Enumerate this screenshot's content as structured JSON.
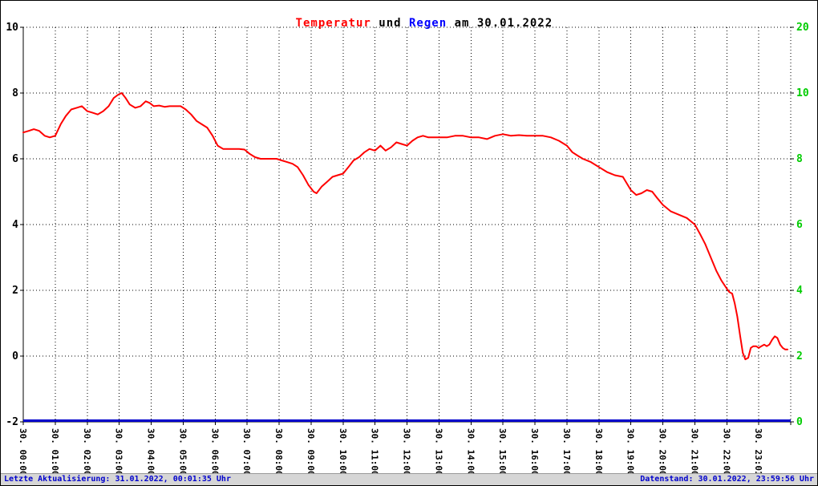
{
  "title": {
    "temperature": "Temperatur",
    "conjunction": " und ",
    "rain": "Regen",
    "date_suffix": " am 30.01.2022"
  },
  "footer": {
    "left": "Letzte Aktualisierung: 31.01.2022, 00:01:35 Uhr",
    "right": "Datenstand: 30.01.2022, 23:59:56 Uhr"
  },
  "colors": {
    "temperature": "#ff0000",
    "rain": "#0000cc",
    "grid": "#000000",
    "left_axis_text": "#000000",
    "right_axis_text": "#00cc00",
    "footer_text": "#0000cc",
    "footer_bg": "#d6d6d6"
  },
  "chart_data": {
    "type": "line",
    "title": "Temperatur und Regen am 30.01.2022",
    "grid": "dotted",
    "legend": "none",
    "x_axis": {
      "range_hours": [
        0,
        24
      ],
      "tick_labels": [
        "30. 00:00",
        "30. 01:00",
        "30. 02:00",
        "30. 03:00",
        "30. 04:00",
        "30. 05:00",
        "30. 06:00",
        "30. 07:00",
        "30. 08:00",
        "30. 09:00",
        "30. 10:00",
        "30. 11:00",
        "30. 12:00",
        "30. 13:00",
        "30. 14:00",
        "30. 15:00",
        "30. 16:00",
        "30. 17:00",
        "30. 18:00",
        "30. 19:00",
        "30. 20:00",
        "30. 21:00",
        "30. 22:00",
        "30. 23:01"
      ]
    },
    "y_left": {
      "label_values": [
        10,
        8,
        6,
        4,
        2,
        0,
        -2
      ],
      "range": [
        -2,
        10
      ],
      "unit": "Temperatur"
    },
    "y_right": {
      "tick_labels": [
        "20",
        "10",
        "8",
        "6",
        "4",
        "2",
        "0"
      ],
      "range": [
        0,
        20
      ],
      "unit": "Regen"
    },
    "series": [
      {
        "name": "Temperatur",
        "color_key": "temperature",
        "axis": "left",
        "points": [
          [
            0,
            6.8
          ],
          [
            0.17,
            6.85
          ],
          [
            0.33,
            6.9
          ],
          [
            0.5,
            6.85
          ],
          [
            0.67,
            6.7
          ],
          [
            0.83,
            6.65
          ],
          [
            1,
            6.7
          ],
          [
            1.17,
            7.05
          ],
          [
            1.33,
            7.3
          ],
          [
            1.5,
            7.5
          ],
          [
            1.67,
            7.55
          ],
          [
            1.83,
            7.6
          ],
          [
            2,
            7.45
          ],
          [
            2.17,
            7.4
          ],
          [
            2.33,
            7.35
          ],
          [
            2.5,
            7.45
          ],
          [
            2.67,
            7.6
          ],
          [
            2.83,
            7.85
          ],
          [
            2.97,
            7.95
          ],
          [
            3.08,
            8.0
          ],
          [
            3.2,
            7.85
          ],
          [
            3.33,
            7.65
          ],
          [
            3.5,
            7.55
          ],
          [
            3.67,
            7.6
          ],
          [
            3.83,
            7.75
          ],
          [
            3.95,
            7.7
          ],
          [
            4.08,
            7.6
          ],
          [
            4.25,
            7.62
          ],
          [
            4.42,
            7.58
          ],
          [
            4.58,
            7.6
          ],
          [
            4.75,
            7.6
          ],
          [
            4.92,
            7.6
          ],
          [
            5.08,
            7.5
          ],
          [
            5.25,
            7.35
          ],
          [
            5.42,
            7.15
          ],
          [
            5.58,
            7.05
          ],
          [
            5.75,
            6.95
          ],
          [
            5.92,
            6.7
          ],
          [
            6.08,
            6.4
          ],
          [
            6.25,
            6.3
          ],
          [
            6.42,
            6.3
          ],
          [
            6.58,
            6.3
          ],
          [
            6.75,
            6.3
          ],
          [
            6.92,
            6.28
          ],
          [
            7.08,
            6.15
          ],
          [
            7.25,
            6.05
          ],
          [
            7.42,
            6.0
          ],
          [
            7.58,
            6.0
          ],
          [
            7.75,
            6.0
          ],
          [
            7.92,
            6.0
          ],
          [
            8.08,
            5.95
          ],
          [
            8.25,
            5.9
          ],
          [
            8.42,
            5.85
          ],
          [
            8.58,
            5.75
          ],
          [
            8.75,
            5.5
          ],
          [
            8.92,
            5.2
          ],
          [
            9.08,
            5.0
          ],
          [
            9.17,
            4.95
          ],
          [
            9.33,
            5.15
          ],
          [
            9.5,
            5.3
          ],
          [
            9.67,
            5.45
          ],
          [
            9.83,
            5.5
          ],
          [
            10,
            5.55
          ],
          [
            10.17,
            5.75
          ],
          [
            10.33,
            5.95
          ],
          [
            10.5,
            6.05
          ],
          [
            10.67,
            6.2
          ],
          [
            10.83,
            6.3
          ],
          [
            11,
            6.25
          ],
          [
            11.17,
            6.4
          ],
          [
            11.33,
            6.25
          ],
          [
            11.5,
            6.35
          ],
          [
            11.67,
            6.5
          ],
          [
            11.83,
            6.45
          ],
          [
            12,
            6.4
          ],
          [
            12.17,
            6.55
          ],
          [
            12.33,
            6.65
          ],
          [
            12.5,
            6.7
          ],
          [
            12.67,
            6.65
          ],
          [
            12.83,
            6.65
          ],
          [
            13,
            6.65
          ],
          [
            13.25,
            6.65
          ],
          [
            13.5,
            6.7
          ],
          [
            13.75,
            6.7
          ],
          [
            14,
            6.65
          ],
          [
            14.25,
            6.65
          ],
          [
            14.5,
            6.6
          ],
          [
            14.75,
            6.7
          ],
          [
            15,
            6.75
          ],
          [
            15.25,
            6.7
          ],
          [
            15.5,
            6.72
          ],
          [
            15.75,
            6.7
          ],
          [
            16,
            6.7
          ],
          [
            16.25,
            6.7
          ],
          [
            16.5,
            6.65
          ],
          [
            16.75,
            6.55
          ],
          [
            17,
            6.4
          ],
          [
            17.17,
            6.2
          ],
          [
            17.33,
            6.1
          ],
          [
            17.5,
            6.0
          ],
          [
            17.75,
            5.9
          ],
          [
            18,
            5.75
          ],
          [
            18.25,
            5.6
          ],
          [
            18.5,
            5.5
          ],
          [
            18.75,
            5.45
          ],
          [
            19,
            5.05
          ],
          [
            19.17,
            4.9
          ],
          [
            19.33,
            4.95
          ],
          [
            19.5,
            5.05
          ],
          [
            19.67,
            5.0
          ],
          [
            19.83,
            4.8
          ],
          [
            20,
            4.6
          ],
          [
            20.25,
            4.4
          ],
          [
            20.5,
            4.3
          ],
          [
            20.75,
            4.2
          ],
          [
            21,
            4.0
          ],
          [
            21.17,
            3.7
          ],
          [
            21.33,
            3.4
          ],
          [
            21.5,
            3.0
          ],
          [
            21.67,
            2.6
          ],
          [
            21.83,
            2.3
          ],
          [
            22,
            2.05
          ],
          [
            22.08,
            1.95
          ],
          [
            22.17,
            1.9
          ],
          [
            22.25,
            1.6
          ],
          [
            22.33,
            1.2
          ],
          [
            22.42,
            0.6
          ],
          [
            22.5,
            0.1
          ],
          [
            22.58,
            -0.1
          ],
          [
            22.67,
            -0.05
          ],
          [
            22.75,
            0.25
          ],
          [
            22.83,
            0.3
          ],
          [
            22.92,
            0.3
          ],
          [
            23,
            0.25
          ],
          [
            23.08,
            0.3
          ],
          [
            23.17,
            0.35
          ],
          [
            23.25,
            0.3
          ],
          [
            23.33,
            0.35
          ],
          [
            23.42,
            0.5
          ],
          [
            23.5,
            0.6
          ],
          [
            23.58,
            0.55
          ],
          [
            23.67,
            0.35
          ],
          [
            23.75,
            0.25
          ],
          [
            23.83,
            0.2
          ],
          [
            23.9,
            0.2
          ]
        ]
      },
      {
        "name": "Regen",
        "color_key": "rain",
        "axis": "right",
        "points": [
          [
            0,
            0
          ],
          [
            24,
            0
          ]
        ]
      }
    ]
  }
}
